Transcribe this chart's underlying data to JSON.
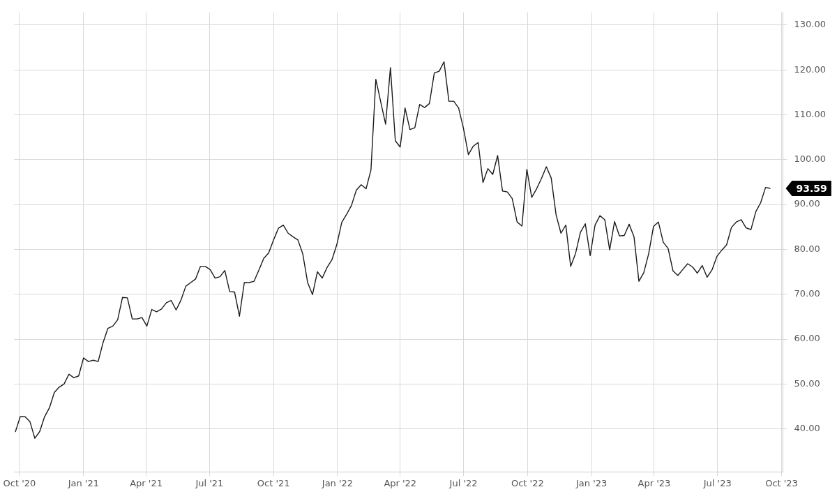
{
  "chart_data": {
    "type": "line",
    "grid": true,
    "legend": false,
    "marker": "none",
    "line_style": "solid",
    "xlim": [
      "2020-09-23",
      "2023-10-03"
    ],
    "xticks": [
      {
        "value": "2020-10-01",
        "label": "Oct '20"
      },
      {
        "value": "2021-01-01",
        "label": "Jan '21"
      },
      {
        "value": "2021-04-01",
        "label": "Apr '21"
      },
      {
        "value": "2021-07-01",
        "label": "Jul '21"
      },
      {
        "value": "2021-10-01",
        "label": "Oct '21"
      },
      {
        "value": "2022-01-01",
        "label": "Jan '22"
      },
      {
        "value": "2022-04-01",
        "label": "Apr '22"
      },
      {
        "value": "2022-07-01",
        "label": "Jul '22"
      },
      {
        "value": "2022-10-01",
        "label": "Oct '22"
      },
      {
        "value": "2023-01-01",
        "label": "Jan '23"
      },
      {
        "value": "2023-04-01",
        "label": "Apr '23"
      },
      {
        "value": "2023-07-01",
        "label": "Jul '23"
      },
      {
        "value": "2023-10-01",
        "label": "Oct '23"
      }
    ],
    "ylim": [
      30.4,
      132.8
    ],
    "yticks": [
      {
        "value": 40,
        "label": "40.00"
      },
      {
        "value": 50,
        "label": "50.00"
      },
      {
        "value": 60,
        "label": "60.00"
      },
      {
        "value": 70,
        "label": "70.00"
      },
      {
        "value": 80,
        "label": "80.00"
      },
      {
        "value": 90,
        "label": "90.00"
      },
      {
        "value": 100,
        "label": "100.00"
      },
      {
        "value": 110,
        "label": "110.00"
      },
      {
        "value": 120,
        "label": "120.00"
      },
      {
        "value": 130,
        "label": "130.00"
      }
    ],
    "annotations": [
      {
        "text": "93.59",
        "x": "2023-09-15",
        "y": 93.59
      }
    ],
    "x": [
      "2020-09-25",
      "2020-10-02",
      "2020-10-09",
      "2020-10-16",
      "2020-10-23",
      "2020-10-30",
      "2020-11-06",
      "2020-11-13",
      "2020-11-20",
      "2020-11-27",
      "2020-12-04",
      "2020-12-11",
      "2020-12-18",
      "2020-12-25",
      "2021-01-01",
      "2021-01-08",
      "2021-01-15",
      "2021-01-22",
      "2021-01-29",
      "2021-02-05",
      "2021-02-12",
      "2021-02-19",
      "2021-02-26",
      "2021-03-05",
      "2021-03-12",
      "2021-03-19",
      "2021-03-26",
      "2021-04-02",
      "2021-04-09",
      "2021-04-16",
      "2021-04-23",
      "2021-04-30",
      "2021-05-07",
      "2021-05-14",
      "2021-05-21",
      "2021-05-28",
      "2021-06-04",
      "2021-06-11",
      "2021-06-18",
      "2021-06-25",
      "2021-07-02",
      "2021-07-09",
      "2021-07-16",
      "2021-07-23",
      "2021-07-30",
      "2021-08-06",
      "2021-08-13",
      "2021-08-20",
      "2021-08-27",
      "2021-09-03",
      "2021-09-10",
      "2021-09-17",
      "2021-09-24",
      "2021-10-01",
      "2021-10-08",
      "2021-10-15",
      "2021-10-22",
      "2021-10-29",
      "2021-11-05",
      "2021-11-12",
      "2021-11-19",
      "2021-11-26",
      "2021-12-03",
      "2021-12-10",
      "2021-12-17",
      "2021-12-24",
      "2021-12-31",
      "2022-01-07",
      "2022-01-14",
      "2022-01-21",
      "2022-01-28",
      "2022-02-04",
      "2022-02-11",
      "2022-02-18",
      "2022-02-25",
      "2022-03-04",
      "2022-03-11",
      "2022-03-18",
      "2022-03-25",
      "2022-04-01",
      "2022-04-08",
      "2022-04-15",
      "2022-04-22",
      "2022-04-29",
      "2022-05-06",
      "2022-05-13",
      "2022-05-20",
      "2022-05-27",
      "2022-06-03",
      "2022-06-10",
      "2022-06-17",
      "2022-06-24",
      "2022-07-01",
      "2022-07-08",
      "2022-07-15",
      "2022-07-22",
      "2022-07-29",
      "2022-08-05",
      "2022-08-12",
      "2022-08-19",
      "2022-08-26",
      "2022-09-02",
      "2022-09-09",
      "2022-09-16",
      "2022-09-23",
      "2022-09-30",
      "2022-10-07",
      "2022-10-14",
      "2022-10-21",
      "2022-10-28",
      "2022-11-04",
      "2022-11-11",
      "2022-11-18",
      "2022-11-25",
      "2022-12-02",
      "2022-12-09",
      "2022-12-16",
      "2022-12-23",
      "2022-12-30",
      "2023-01-06",
      "2023-01-13",
      "2023-01-20",
      "2023-01-27",
      "2023-02-03",
      "2023-02-10",
      "2023-02-17",
      "2023-02-24",
      "2023-03-03",
      "2023-03-10",
      "2023-03-17",
      "2023-03-24",
      "2023-03-31",
      "2023-04-07",
      "2023-04-14",
      "2023-04-21",
      "2023-04-28",
      "2023-05-05",
      "2023-05-12",
      "2023-05-19",
      "2023-05-26",
      "2023-06-02",
      "2023-06-09",
      "2023-06-16",
      "2023-06-23",
      "2023-06-30",
      "2023-07-07",
      "2023-07-14",
      "2023-07-21",
      "2023-07-28",
      "2023-08-04",
      "2023-08-11",
      "2023-08-18",
      "2023-08-25",
      "2023-09-01",
      "2023-09-08",
      "2023-09-15"
    ],
    "series": [
      {
        "color": "#1a1a1a",
        "values": [
          39.3,
          42.7,
          42.7,
          41.6,
          37.9,
          39.4,
          42.7,
          44.7,
          48.1,
          49.3,
          50.0,
          52.2,
          51.4,
          51.8,
          55.8,
          55.0,
          55.3,
          55.0,
          59.2,
          62.4,
          62.9,
          64.3,
          69.3,
          69.2,
          64.5,
          64.5,
          64.8,
          62.9,
          66.6,
          66.1,
          66.7,
          68.1,
          68.6,
          66.5,
          68.7,
          71.8,
          72.6,
          73.4,
          76.2,
          76.2,
          75.5,
          73.6,
          73.9,
          75.3,
          70.6,
          70.5,
          65.1,
          72.6,
          72.6,
          72.9,
          75.4,
          78.0,
          79.2,
          82.1,
          84.7,
          85.4,
          83.6,
          82.8,
          82.1,
          79.0,
          72.6,
          69.9,
          75.0,
          73.6,
          76.0,
          77.7,
          81.1,
          86.0,
          87.8,
          89.8,
          93.2,
          94.4,
          93.5,
          97.7,
          117.9,
          112.9,
          107.9,
          120.5,
          104.2,
          102.8,
          111.5,
          106.7,
          107.1,
          112.3,
          111.6,
          112.5,
          119.3,
          119.7,
          121.8,
          113.0,
          113.0,
          111.5,
          106.9,
          101.1,
          103.0,
          103.8,
          94.9,
          98.0,
          96.7,
          100.9,
          93.0,
          92.8,
          91.3,
          86.1,
          85.2,
          97.8,
          91.6,
          93.5,
          95.8,
          98.4,
          95.9,
          87.7,
          83.6,
          85.4,
          76.2,
          79.1,
          83.8,
          85.7,
          78.6,
          85.4,
          87.5,
          86.6,
          79.9,
          86.2,
          83.0,
          83.1,
          85.6,
          82.8,
          72.9,
          74.8,
          79.0,
          85.1,
          86.1,
          81.6,
          80.2,
          75.2,
          74.2,
          75.5,
          76.8,
          76.1,
          74.7,
          76.4,
          73.8,
          75.4,
          78.4,
          79.8,
          81.0,
          84.9,
          86.1,
          86.6,
          84.8,
          84.4,
          88.4,
          90.4,
          93.8,
          93.59
        ]
      }
    ]
  }
}
